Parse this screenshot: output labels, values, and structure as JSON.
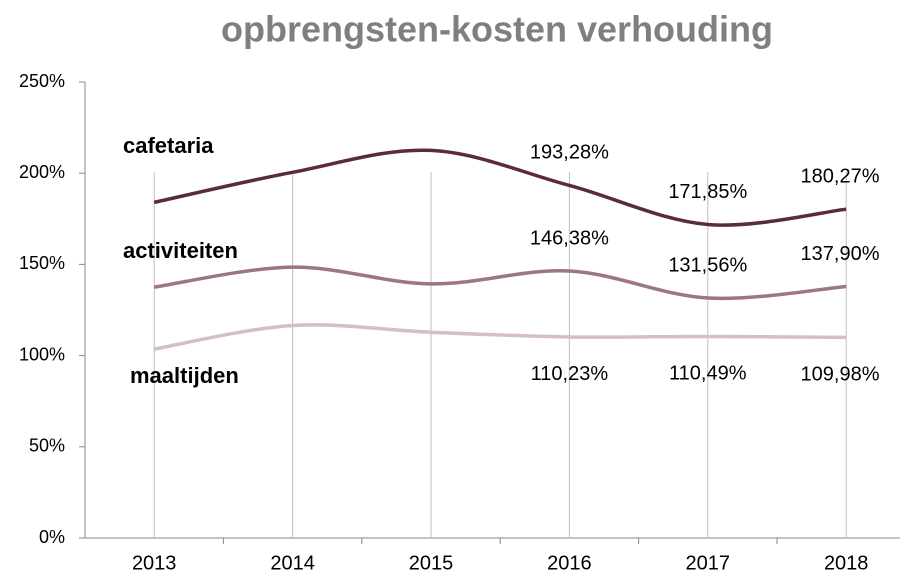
{
  "chart_data": {
    "type": "line",
    "title": "opbrengsten-kosten verhouding",
    "categories": [
      "2013",
      "2014",
      "2015",
      "2016",
      "2017",
      "2018"
    ],
    "series": [
      {
        "name": "cafetaria",
        "color": "#5b2b3b",
        "values": [
          184,
          200.5,
          212.5,
          193.28,
          171.85,
          180.27
        ],
        "value_labels": [
          null,
          null,
          null,
          "193,28%",
          "171,85%",
          "180,27%"
        ]
      },
      {
        "name": "activiteiten",
        "color": "#9b7783",
        "values": [
          137.5,
          148.5,
          139.3,
          146.38,
          131.56,
          137.9
        ],
        "value_labels": [
          null,
          null,
          null,
          "146,38%",
          "131,56%",
          "137,90%"
        ]
      },
      {
        "name": "maaltijden",
        "color": "#d5bfc6",
        "values": [
          103.6,
          116.5,
          112.8,
          110.23,
          110.49,
          109.98
        ],
        "value_labels": [
          null,
          null,
          null,
          "110,23%",
          "110,49%",
          "109,98%"
        ]
      }
    ],
    "ylim": [
      0,
      250
    ],
    "yticks": [
      {
        "value": 0,
        "label": "0%"
      },
      {
        "value": 50,
        "label": "50%"
      },
      {
        "value": 100,
        "label": "100%"
      },
      {
        "value": 150,
        "label": "150%"
      },
      {
        "value": 200,
        "label": "200%"
      },
      {
        "value": 250,
        "label": "250%"
      }
    ],
    "grid": "x"
  }
}
